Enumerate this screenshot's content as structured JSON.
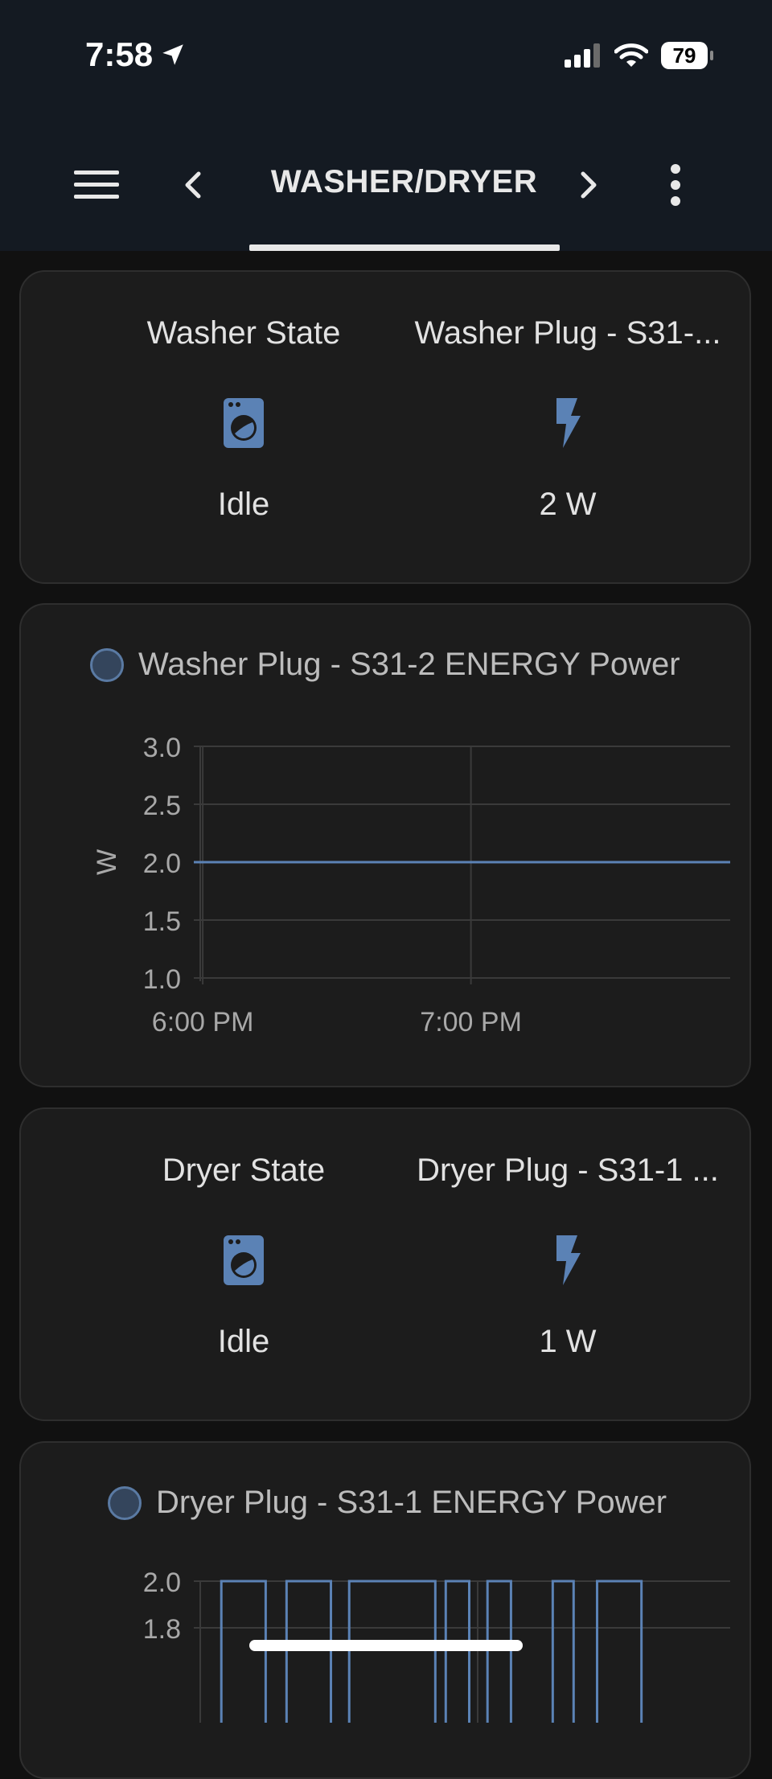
{
  "status_bar": {
    "time": "7:58",
    "battery": "79"
  },
  "header": {
    "title": "WASHER/DRYER"
  },
  "washer_card": {
    "state": {
      "name": "Washer State",
      "value": "Idle",
      "icon": "washing-machine-icon"
    },
    "plug": {
      "name": "Washer Plug - S31-...",
      "value": "2 W",
      "icon": "flash-icon"
    }
  },
  "washer_chart": {
    "legend": "Washer Plug - S31-2 ENERGY Power",
    "chart_data": {
      "type": "line",
      "title": "",
      "ylabel": "W",
      "ylim": [
        1.0,
        3.0
      ],
      "yticks": [
        "3.0",
        "2.5",
        "2.0",
        "1.5",
        "1.0"
      ],
      "xticks": [
        "6:00 PM",
        "7:00 PM"
      ],
      "series": [
        {
          "name": "Washer Plug - S31-2 ENERGY Power",
          "x": [
            "5:58 PM",
            "7:58 PM"
          ],
          "values": [
            2.0,
            2.0
          ]
        }
      ],
      "color": "#5b82b5",
      "grid": true
    }
  },
  "dryer_card": {
    "state": {
      "name": "Dryer State",
      "value": "Idle",
      "icon": "washing-machine-icon"
    },
    "plug": {
      "name": "Dryer Plug - S31-1 ...",
      "value": "1 W",
      "icon": "flash-icon"
    }
  },
  "dryer_chart": {
    "legend": "Dryer Plug - S31-1 ENERGY Power",
    "chart_data": {
      "type": "line",
      "title": "",
      "ylabel": "",
      "yticks": [
        "2.0",
        "1.8"
      ],
      "ylim": [
        1.0,
        2.0
      ],
      "series": [
        {
          "name": "Dryer Plug - S31-1 ENERGY Power",
          "x_fraction": [
            0.0,
            0.025,
            0.025,
            0.11,
            0.11,
            0.15,
            0.15,
            0.235,
            0.235,
            0.27,
            0.27,
            0.435,
            0.435,
            0.455,
            0.455,
            0.5,
            0.5,
            0.535,
            0.535,
            0.58,
            0.58,
            0.66,
            0.66,
            0.7,
            0.7,
            0.745,
            0.745,
            0.83,
            0.83,
            1.0
          ],
          "values": [
            1.0,
            1.0,
            2.0,
            2.0,
            1.0,
            1.0,
            2.0,
            2.0,
            1.0,
            1.0,
            2.0,
            2.0,
            1.0,
            1.0,
            2.0,
            2.0,
            1.0,
            1.0,
            2.0,
            2.0,
            1.0,
            1.0,
            2.0,
            2.0,
            1.0,
            1.0,
            2.0,
            2.0,
            1.0,
            1.0
          ]
        }
      ],
      "color": "#5b82b5",
      "grid": true
    }
  }
}
